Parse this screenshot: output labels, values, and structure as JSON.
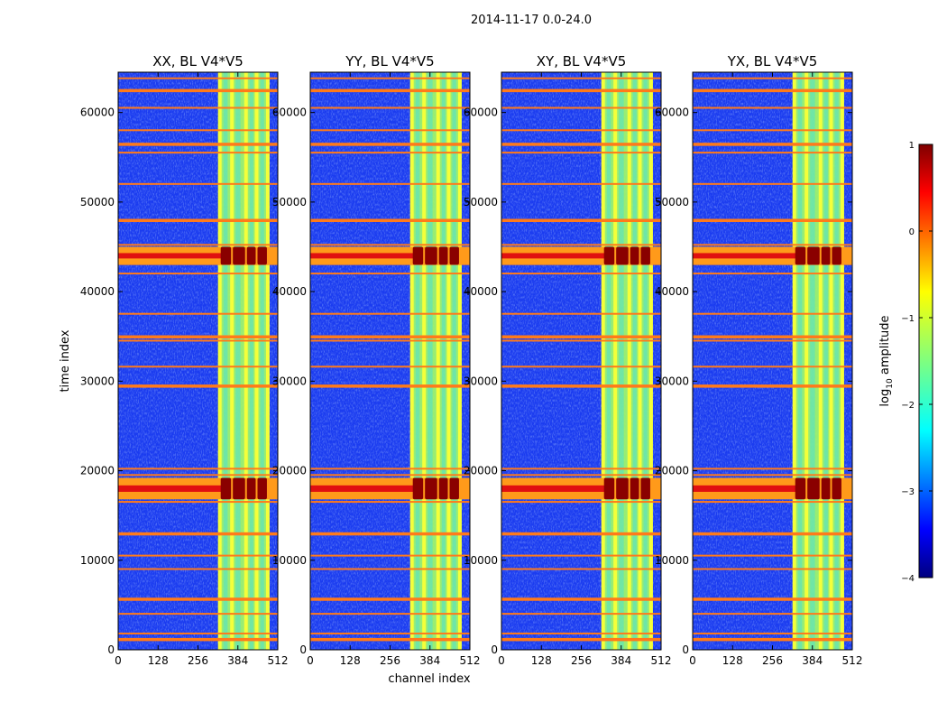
{
  "chart_data": {
    "type": "heatmap",
    "suptitle": "2014-11-17 0.0-24.0",
    "xlabel": "channel index",
    "ylabel": "time index",
    "xlim": [
      0,
      512
    ],
    "ylim": [
      0,
      64500
    ],
    "xticks": [
      0,
      128,
      256,
      384,
      512
    ],
    "yticks": [
      0,
      10000,
      20000,
      30000,
      40000,
      50000,
      60000
    ],
    "panels": [
      {
        "title": "XX, BL V4*V5",
        "pol": "XX"
      },
      {
        "title": "YY, BL V4*V5",
        "pol": "YY"
      },
      {
        "title": "XY, BL V4*V5",
        "pol": "XY"
      },
      {
        "title": "YX, BL V4*V5",
        "pol": "YX"
      }
    ],
    "colorbar": {
      "label_prefix": "log",
      "label_sub": "10",
      "label_suffix": " amplitude",
      "range": [
        -4,
        1
      ],
      "ticks": [
        1,
        0,
        -1,
        -2,
        -3,
        -4
      ],
      "tick_labels": [
        "1",
        "0",
        "−1",
        "−2",
        "−3",
        "−4"
      ],
      "colormap": "jet"
    },
    "features": {
      "bright_channel_band": [
        326,
        480
      ],
      "channel_lines": [
        326,
        365,
        410,
        444,
        480
      ],
      "rfi_time_rows": [
        1200,
        1800,
        4000,
        5700,
        9000,
        10500,
        13000,
        16500,
        17200,
        18000,
        19500,
        20200,
        29500,
        31600,
        34500,
        35000,
        37500,
        42000,
        43200,
        44500,
        45200,
        48000,
        52000,
        55500,
        56500,
        58000,
        60500,
        62500,
        63800
      ],
      "saturated_blocks": [
        {
          "t0": 16800,
          "t1": 19200
        },
        {
          "t0": 43000,
          "t1": 45000
        }
      ]
    }
  }
}
